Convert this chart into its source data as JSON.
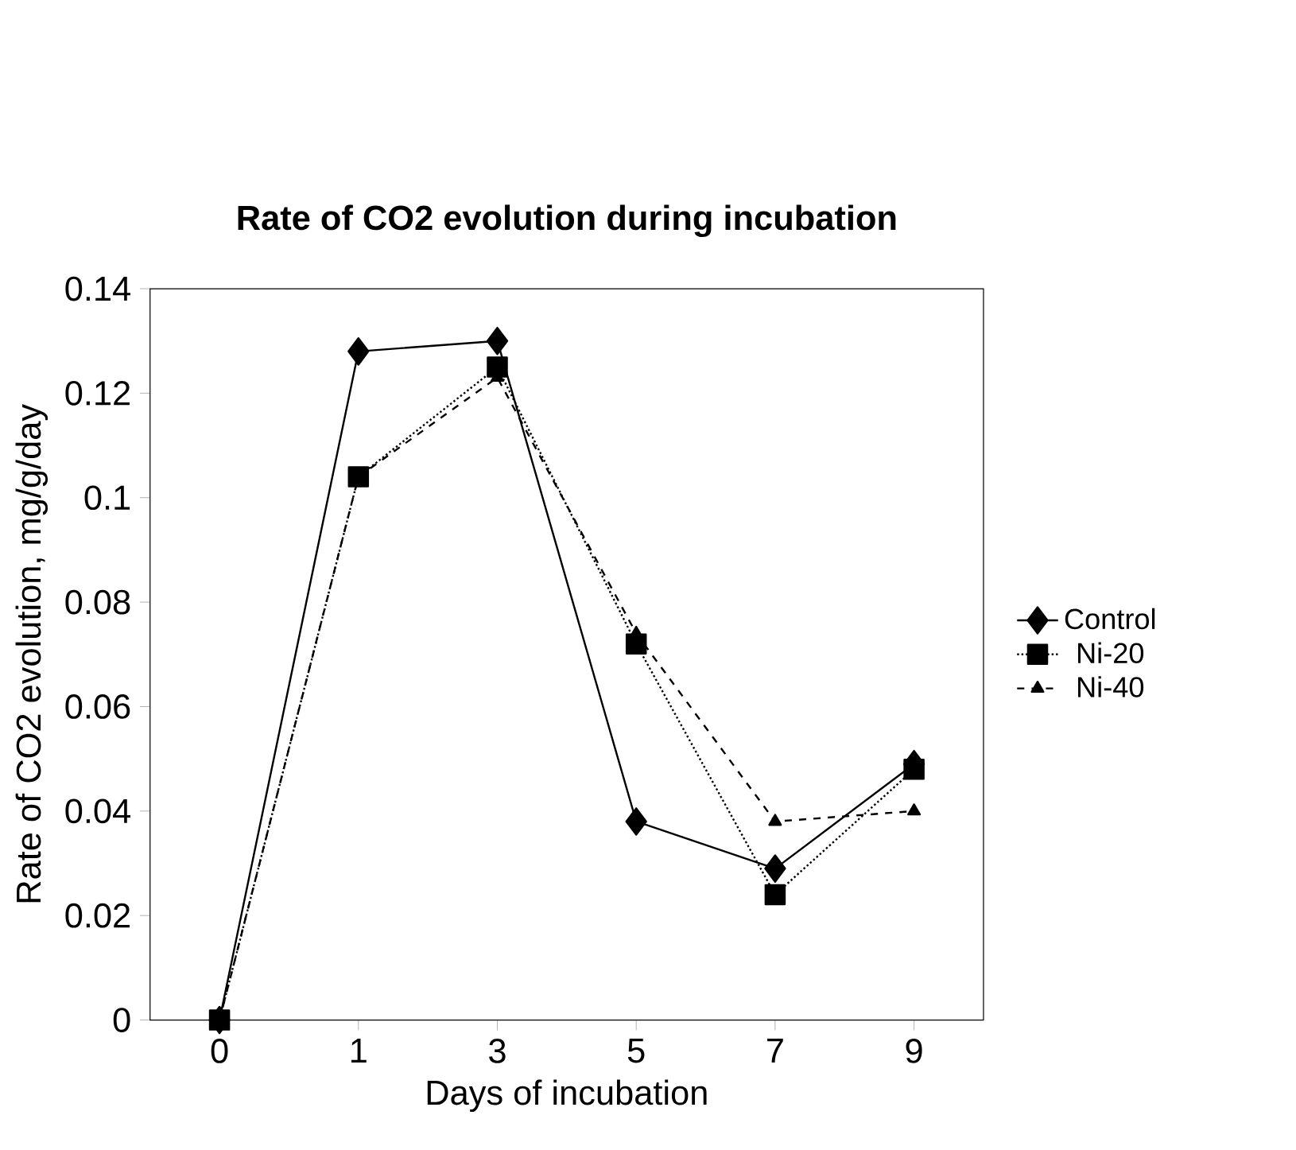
{
  "chart_data": {
    "type": "line",
    "title": "Rate of CO2 evolution during incubation",
    "xlabel": "Days of incubation",
    "ylabel": "Rate of CO2 evolution, mg/g/day",
    "categories": [
      "0",
      "1",
      "3",
      "5",
      "7",
      "9"
    ],
    "series": [
      {
        "name": "Control",
        "color": "#000000",
        "marker": "diamond",
        "line_style": "solid",
        "values": [
          0,
          0.128,
          0.13,
          0.038,
          0.029,
          0.049
        ]
      },
      {
        "name": "Ni-20",
        "color": "#000000",
        "marker": "square",
        "line_style": "dotted",
        "values": [
          0,
          0.104,
          0.125,
          0.072,
          0.024,
          0.048
        ]
      },
      {
        "name": "Ni-40",
        "color": "#000000",
        "marker": "triangle",
        "line_style": "dashed",
        "values": [
          0,
          0.104,
          0.123,
          0.074,
          0.038,
          0.04
        ]
      }
    ],
    "ylim": [
      0,
      0.14
    ],
    "yticks": [
      0,
      0.02,
      0.04,
      0.06,
      0.08,
      0.1,
      0.12,
      0.14
    ],
    "grid": false,
    "legend": "right"
  }
}
